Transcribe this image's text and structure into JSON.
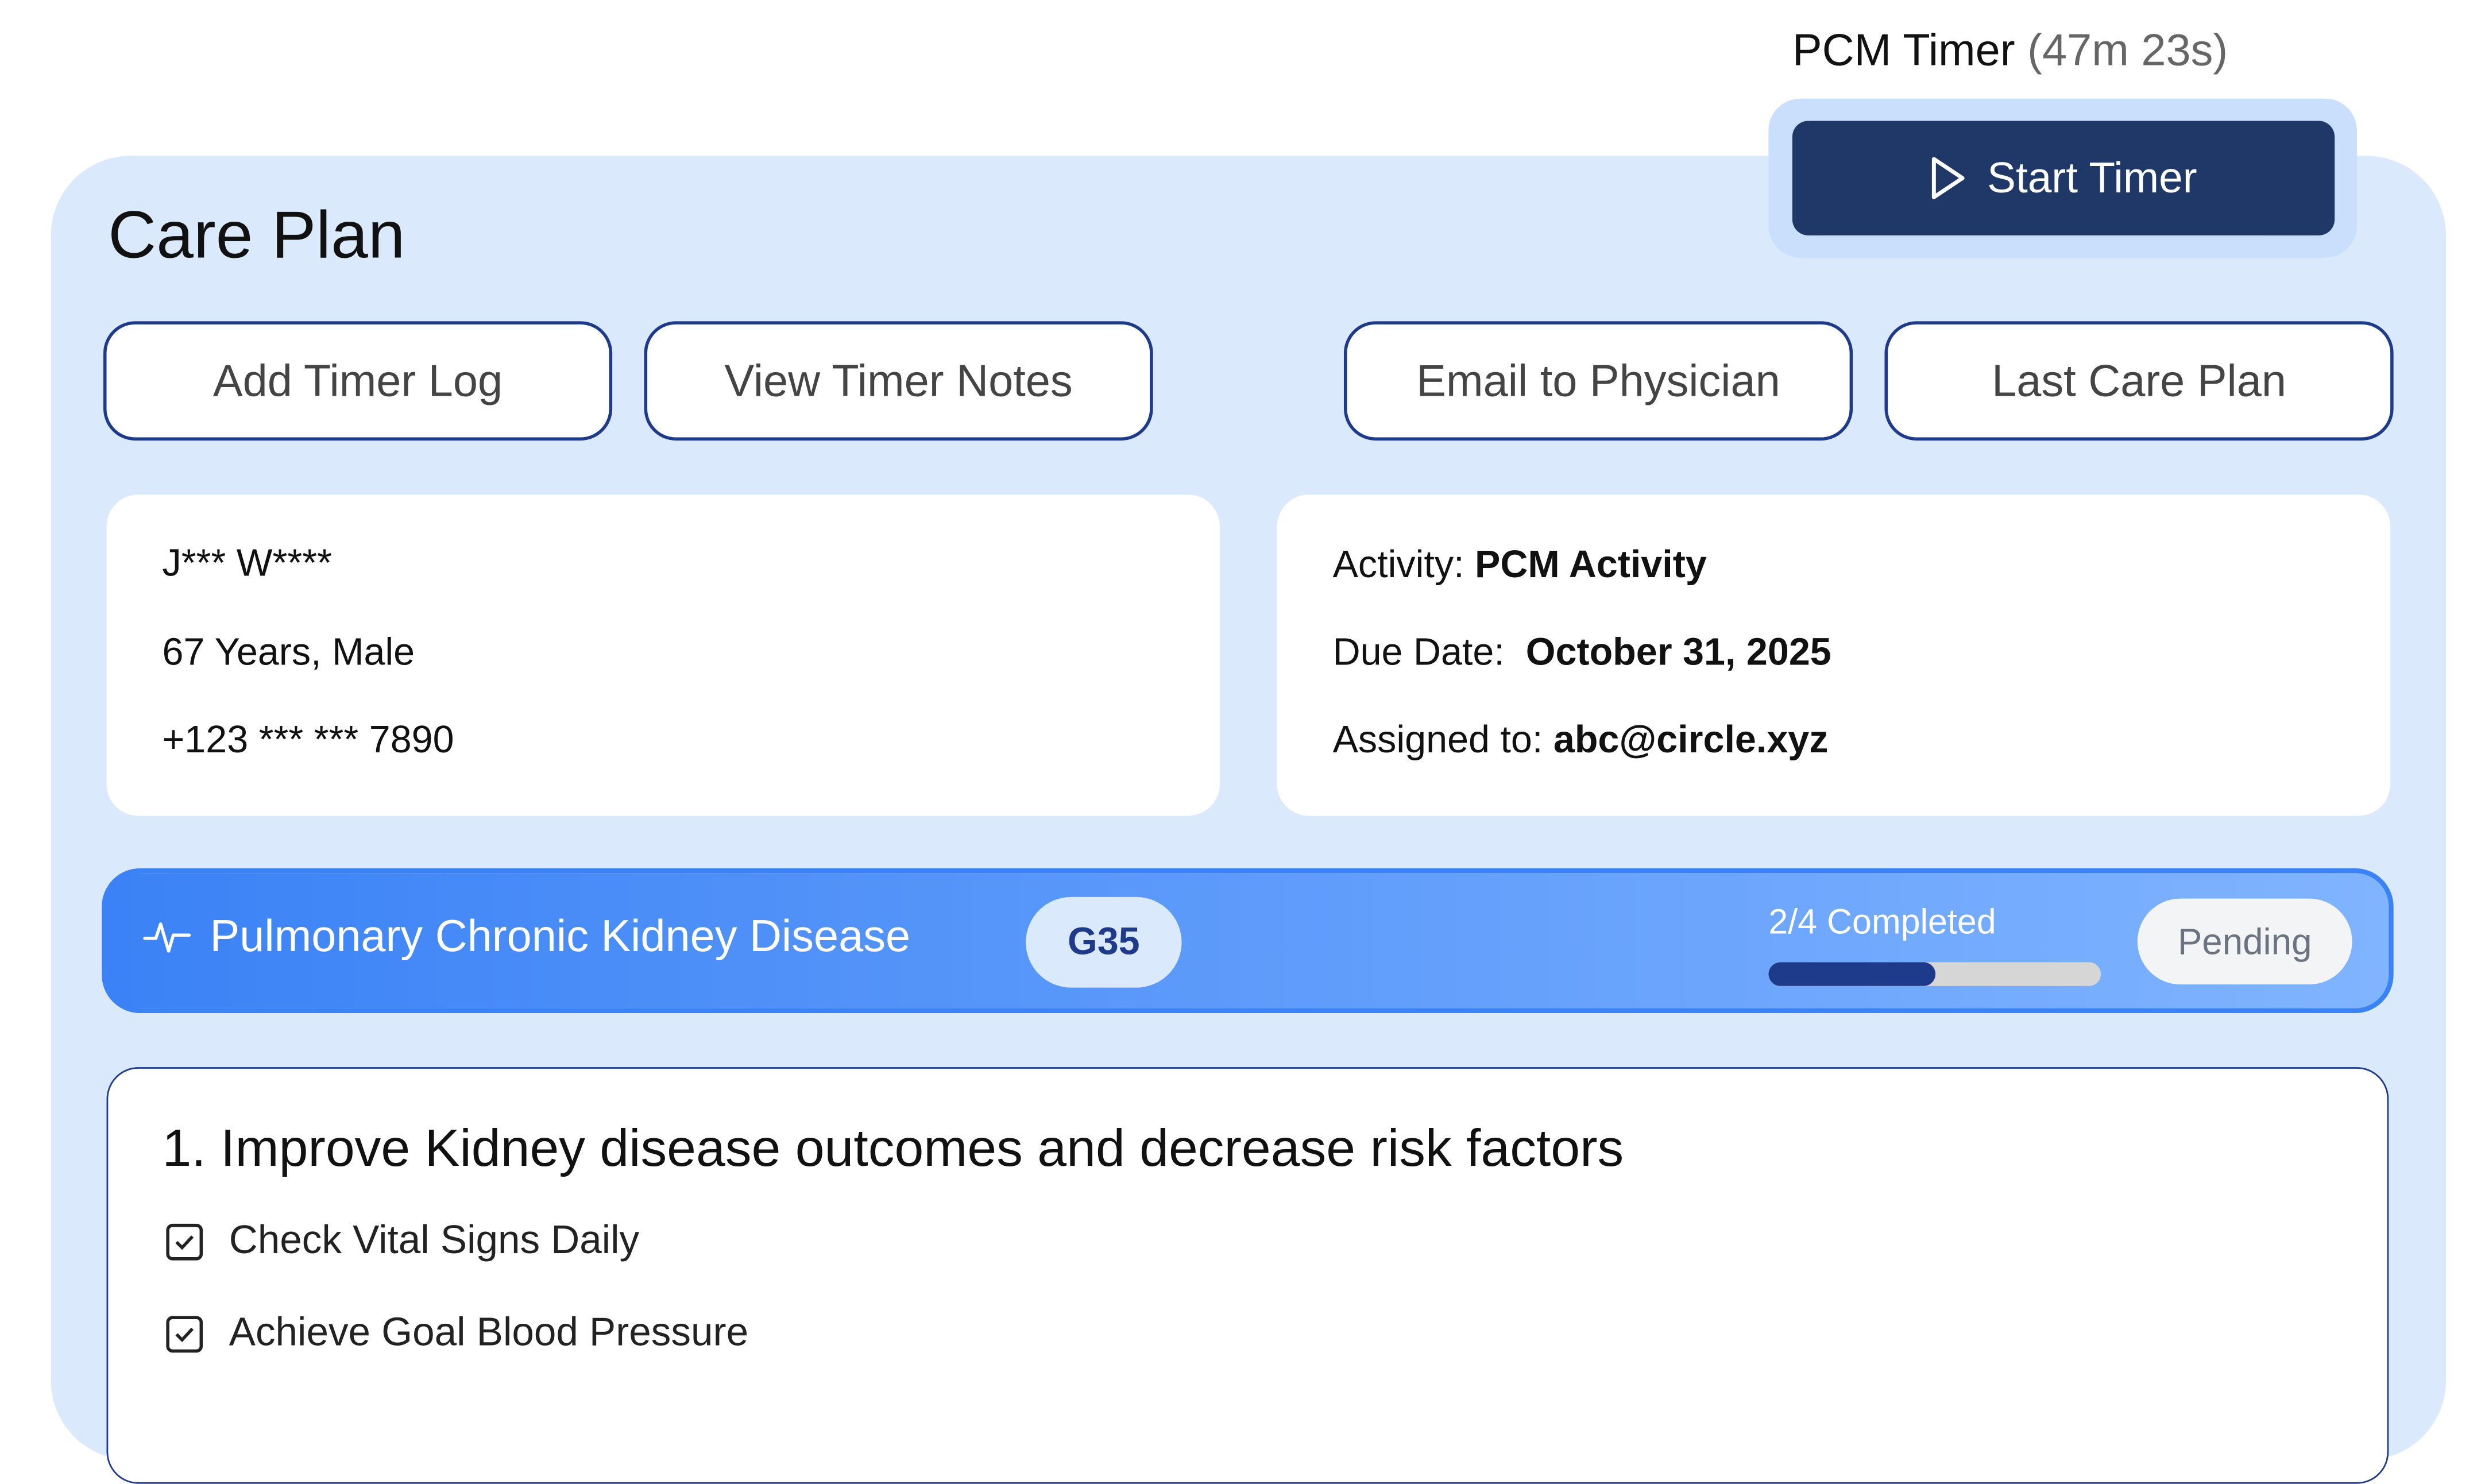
{
  "timer": {
    "label": "PCM Timer",
    "elapsed": "(47m 23s)",
    "start_label": "Start Timer"
  },
  "page_title": "Care Plan",
  "actions": [
    "Add Timer Log",
    "View Timer Notes",
    "Email to Physician",
    "Last Care Plan"
  ],
  "patient": {
    "name": "J*** W****",
    "age_sex": "67 Years, Male",
    "phone": "+123 *** *** 7890"
  },
  "activity": {
    "activity_label": "Activity:",
    "activity_value": "PCM Activity",
    "due_label": "Due Date:",
    "due_value": "October 31, 2025",
    "assigned_label": "Assigned to:",
    "assigned_value": "abc@circle.xyz"
  },
  "condition": {
    "name": "Pulmonary Chronic Kidney Disease",
    "code": "G35",
    "progress_text": "2/4 Completed",
    "progress_fraction": 0.5,
    "status": "Pending",
    "icon": "activity-pulse-icon"
  },
  "goal": {
    "title": "1. Improve Kidney disease outcomes and decrease risk factors",
    "items": [
      "Check Vital Signs Daily",
      "Achieve Goal Blood Pressure"
    ]
  },
  "colors": {
    "primary": "#1f3868",
    "panel": "#dbe9fd",
    "accent": "#3b82f6"
  }
}
